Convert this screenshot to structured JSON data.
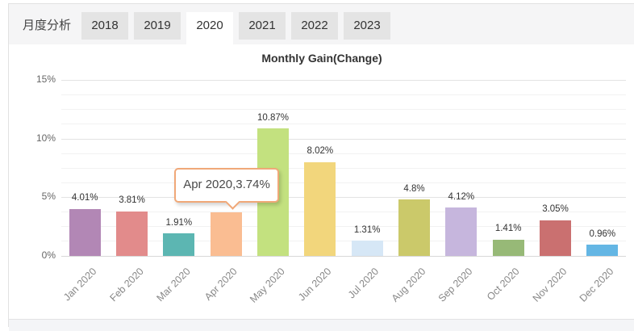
{
  "tab_bar": {
    "title": "月度分析",
    "tabs": [
      {
        "label": "2018",
        "active": false
      },
      {
        "label": "2019",
        "active": false
      },
      {
        "label": "2020",
        "active": true
      },
      {
        "label": "2021",
        "active": false
      },
      {
        "label": "2022",
        "active": false
      },
      {
        "label": "2023",
        "active": false
      }
    ]
  },
  "chart_data": {
    "type": "bar",
    "title": "Monthly Gain(Change)",
    "categories": [
      "Jan 2020",
      "Feb 2020",
      "Mar 2020",
      "Apr 2020",
      "May 2020",
      "Jun 2020",
      "Jul 2020",
      "Aug 2020",
      "Sep 2020",
      "Oct 2020",
      "Nov 2020",
      "Dec 2020"
    ],
    "values": [
      4.01,
      3.81,
      1.91,
      3.74,
      10.87,
      8.02,
      1.31,
      4.8,
      4.12,
      1.41,
      3.05,
      0.96
    ],
    "value_labels": [
      "4.01%",
      "3.81%",
      "1.91%",
      "3.74%",
      "10.87%",
      "8.02%",
      "1.31%",
      "4.8%",
      "4.12%",
      "1.41%",
      "3.05%",
      "0.96%"
    ],
    "bar_colors": [
      "#b287b5",
      "#e28b8b",
      "#5cb6b2",
      "#fabd92",
      "#c3e17f",
      "#f2d67c",
      "#d6e7f6",
      "#cbc96a",
      "#c6b6dd",
      "#97b977",
      "#ca7070",
      "#64b6e4"
    ],
    "ylim": [
      0,
      15
    ],
    "ytick_pcts": [
      0,
      5,
      10,
      15
    ],
    "ytick_labels": [
      "0%",
      "5%",
      "10%",
      "15%"
    ],
    "minor_grid_step": 1.25,
    "grid": true,
    "legend": "none",
    "xlabel": "",
    "ylabel": "",
    "tooltip": {
      "text": "Apr 2020,3.74%",
      "category": "Apr 2020",
      "border_color": "#f0a878"
    }
  }
}
